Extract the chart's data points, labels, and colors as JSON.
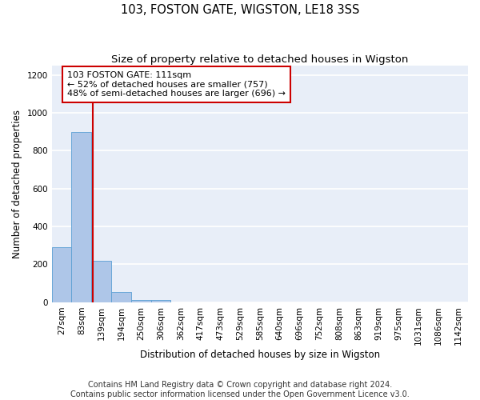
{
  "title": "103, FOSTON GATE, WIGSTON, LE18 3SS",
  "subtitle": "Size of property relative to detached houses in Wigston",
  "xlabel": "Distribution of detached houses by size in Wigston",
  "ylabel": "Number of detached properties",
  "bin_labels": [
    "27sqm",
    "83sqm",
    "139sqm",
    "194sqm",
    "250sqm",
    "306sqm",
    "362sqm",
    "417sqm",
    "473sqm",
    "529sqm",
    "585sqm",
    "640sqm",
    "696sqm",
    "752sqm",
    "808sqm",
    "863sqm",
    "919sqm",
    "975sqm",
    "1031sqm",
    "1086sqm",
    "1142sqm"
  ],
  "bar_values": [
    290,
    900,
    220,
    55,
    10,
    10,
    0,
    0,
    0,
    0,
    0,
    0,
    0,
    0,
    0,
    0,
    0,
    0,
    0,
    0,
    0
  ],
  "bar_color": "#aec6e8",
  "bar_edge_color": "#5a9fd4",
  "ylim": [
    0,
    1250
  ],
  "yticks": [
    0,
    200,
    400,
    600,
    800,
    1000,
    1200
  ],
  "red_line_x": 1.56,
  "annotation_line1": "103 FOSTON GATE: 111sqm",
  "annotation_line2": "← 52% of detached houses are smaller (757)",
  "annotation_line3": "48% of semi-detached houses are larger (696) →",
  "annotation_box_color": "#ffffff",
  "annotation_border_color": "#cc0000",
  "footer_line1": "Contains HM Land Registry data © Crown copyright and database right 2024.",
  "footer_line2": "Contains public sector information licensed under the Open Government Licence v3.0.",
  "background_color": "#e8eef8",
  "grid_color": "#ffffff",
  "title_fontsize": 10.5,
  "subtitle_fontsize": 9.5,
  "axis_label_fontsize": 8.5,
  "tick_fontsize": 7.5,
  "annotation_fontsize": 8,
  "footer_fontsize": 7
}
